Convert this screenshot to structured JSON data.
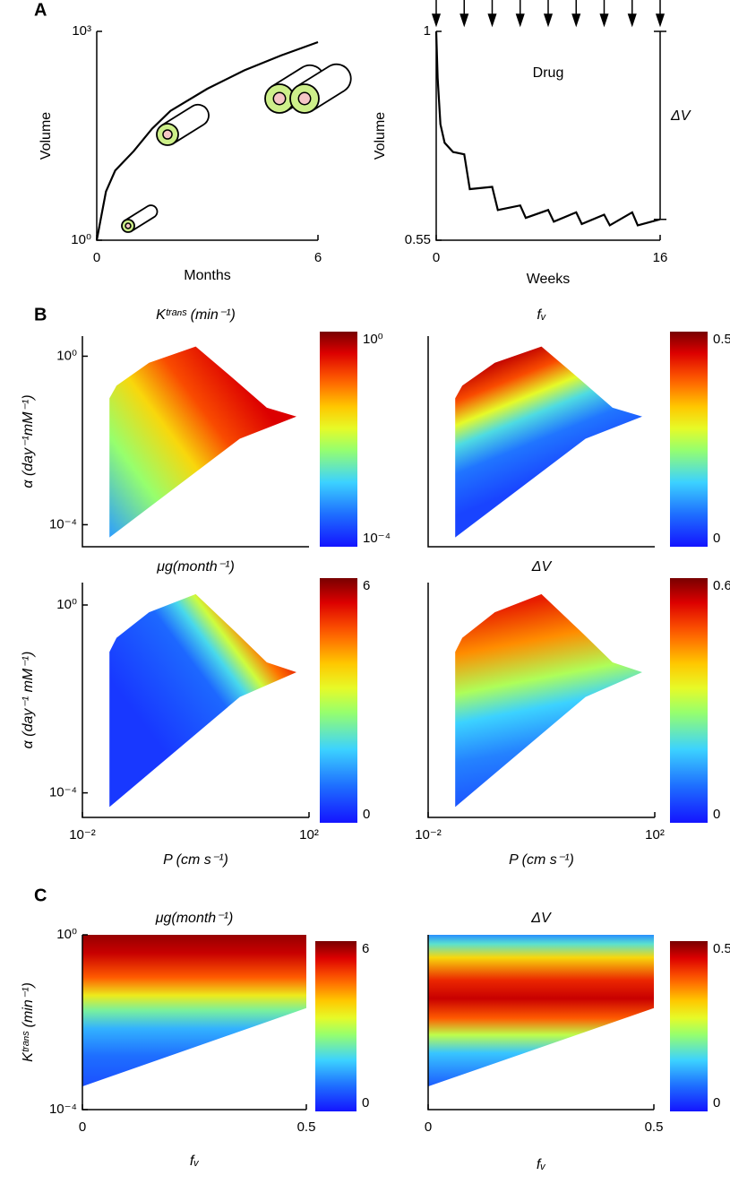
{
  "panel_labels": [
    "A",
    "B",
    "C"
  ],
  "chart_data": [
    {
      "type": "line",
      "xlabel": "Months",
      "ylabel": "Volume",
      "log_y": true,
      "xlim": [
        0,
        6
      ],
      "ylim": [
        1,
        1000
      ],
      "xticks": [
        0,
        6
      ],
      "yticks": [
        {
          "value": 1,
          "label": "10⁰"
        },
        {
          "value": 1000,
          "label": "10³"
        }
      ],
      "color": "#000000",
      "x": [
        0,
        0.25,
        0.5,
        1,
        1.5,
        2,
        3,
        4,
        5,
        6
      ],
      "values": [
        1,
        5,
        10,
        19,
        40,
        72,
        150,
        275,
        450,
        700
      ]
    },
    {
      "type": "line",
      "xlabel": "Weeks",
      "ylabel": "Volume",
      "xlim": [
        0,
        16
      ],
      "ylim": [
        0.55,
        1
      ],
      "xticks": [
        0,
        16
      ],
      "yticks": [
        0.55,
        1
      ],
      "color": "#000000",
      "x": [
        0,
        0.1,
        0.3,
        0.6,
        1.2,
        2,
        2.4,
        4,
        4.4,
        6,
        6.4,
        8,
        8.4,
        10,
        10.4,
        12,
        12.4,
        14,
        14.4,
        16
      ],
      "values": [
        1,
        0.9,
        0.8,
        0.76,
        0.74,
        0.735,
        0.66,
        0.665,
        0.615,
        0.625,
        0.598,
        0.615,
        0.59,
        0.61,
        0.585,
        0.605,
        0.582,
        0.61,
        0.582,
        0.595
      ],
      "doses": [
        0,
        2,
        4,
        6,
        8,
        10,
        12,
        14,
        16
      ],
      "annotations": [
        "Drug",
        "ΔV"
      ]
    },
    {
      "type": "heatmap",
      "title": "Kᵗʳᵃⁿˢ (min⁻¹)",
      "ylabel": "α (day⁻¹mM⁻¹)",
      "log_x": true,
      "log_y": true,
      "xlim": [
        0.01,
        100
      ],
      "ylim": [
        3e-05,
        3
      ],
      "yticks": [
        {
          "value": 1,
          "label": "10⁰"
        },
        {
          "value": 0.0001,
          "label": "10⁻⁴"
        }
      ],
      "domain": {
        "x": [
          0.03,
          0.03,
          0.04,
          0.15,
          1,
          5,
          18,
          60,
          6
        ],
        "y": [
          5e-05,
          0.1,
          0.2,
          0.7,
          1.7,
          0.27,
          0.06,
          0.037,
          0.011
        ]
      },
      "colorbar": {
        "log": true,
        "lim": [
          0.0001,
          1
        ],
        "ticks": [
          {
            "value": 1,
            "label": "10⁰"
          },
          {
            "value": 0.0001,
            "label": "10⁻⁴"
          }
        ]
      }
    },
    {
      "type": "heatmap",
      "title": "fᵥ",
      "log_x": true,
      "log_y": true,
      "xlim": [
        0.01,
        100
      ],
      "ylim": [
        3e-05,
        3
      ],
      "domain": {
        "x": [
          0.03,
          0.03,
          0.04,
          0.15,
          1,
          5,
          18,
          60,
          6
        ],
        "y": [
          5e-05,
          0.1,
          0.2,
          0.7,
          1.7,
          0.27,
          0.06,
          0.037,
          0.011
        ]
      },
      "colorbar": {
        "lim": [
          0,
          0.5
        ],
        "ticks": [
          0.5,
          0
        ]
      }
    },
    {
      "type": "heatmap",
      "title": "μg(month⁻¹)",
      "ylabel": "α (day⁻¹ mM⁻¹)",
      "xlabel": "P (cm s⁻¹)",
      "log_x": true,
      "log_y": true,
      "xlim": [
        0.01,
        100
      ],
      "ylim": [
        3e-05,
        3
      ],
      "xticks": [
        {
          "value": 0.01,
          "label": "10⁻²"
        },
        {
          "value": 100,
          "label": "10²"
        }
      ],
      "yticks": [
        {
          "value": 1,
          "label": "10⁰"
        },
        {
          "value": 0.0001,
          "label": "10⁻⁴"
        }
      ],
      "domain": {
        "x": [
          0.03,
          0.03,
          0.04,
          0.15,
          1,
          5,
          18,
          60,
          6
        ],
        "y": [
          5e-05,
          0.1,
          0.2,
          0.7,
          1.7,
          0.27,
          0.06,
          0.037,
          0.011
        ]
      },
      "colorbar": {
        "lim": [
          0,
          6
        ],
        "ticks": [
          6,
          0
        ]
      }
    },
    {
      "type": "heatmap",
      "title": "ΔV",
      "xlabel": "P (cm s⁻¹)",
      "log_x": true,
      "log_y": true,
      "xlim": [
        0.01,
        100
      ],
      "ylim": [
        3e-05,
        3
      ],
      "xticks": [
        {
          "value": 0.01,
          "label": "10⁻²"
        },
        {
          "value": 100,
          "label": "10²"
        }
      ],
      "domain": {
        "x": [
          0.03,
          0.03,
          0.04,
          0.15,
          1,
          5,
          18,
          60,
          6
        ],
        "y": [
          5e-05,
          0.1,
          0.2,
          0.7,
          1.7,
          0.27,
          0.06,
          0.037,
          0.011
        ]
      },
      "colorbar": {
        "lim": [
          0,
          0.6
        ],
        "ticks": [
          0.6,
          0
        ]
      }
    },
    {
      "type": "heatmap",
      "title": "μg(month⁻¹)",
      "ylabel": "Kᵗʳᵃⁿˢ (min⁻¹)",
      "xlabel": "fᵥ",
      "log_y": true,
      "xlim": [
        0,
        0.5
      ],
      "ylim": [
        0.0001,
        1
      ],
      "xticks": [
        0,
        0.5
      ],
      "yticks": [
        {
          "value": 1,
          "label": "10⁰"
        },
        {
          "value": 0.0001,
          "label": "10⁻⁴"
        }
      ],
      "domain": {
        "x": [
          0,
          0,
          0.5,
          0.5
        ],
        "y": [
          0.00034,
          1,
          1,
          0.021
        ]
      },
      "colorbar": {
        "lim": [
          0,
          6
        ],
        "ticks": [
          6,
          0
        ]
      }
    },
    {
      "type": "heatmap",
      "title": "ΔV",
      "xlabel": "fᵥ",
      "log_y": true,
      "xlim": [
        0,
        0.5
      ],
      "ylim": [
        0.0001,
        1
      ],
      "xticks": [
        0,
        0.5
      ],
      "domain": {
        "x": [
          0,
          0,
          0.5,
          0.5
        ],
        "y": [
          0.00034,
          1,
          1,
          0.021
        ]
      },
      "colorbar": {
        "lim": [
          0,
          0.5
        ],
        "ticks": [
          0.5,
          0
        ]
      }
    }
  ]
}
